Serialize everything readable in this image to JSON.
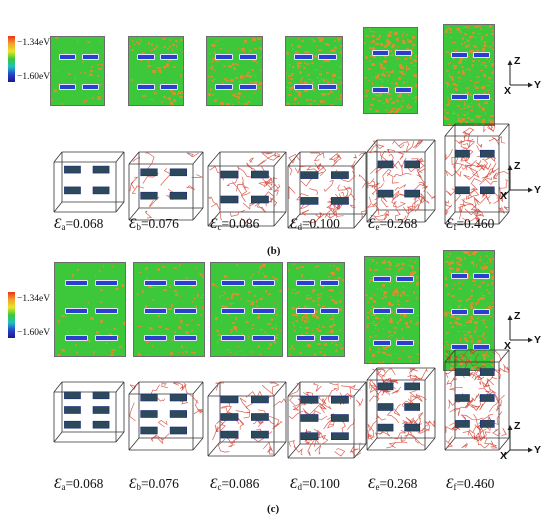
{
  "sections": [
    {
      "id": "b",
      "caption": "(b)",
      "colorbar": {
        "top_label": "−1.34eV",
        "bottom_label": "−1.60eV"
      },
      "strains": [
        {
          "sub": "a",
          "value": "=0.068"
        },
        {
          "sub": "b",
          "value": "=0.076"
        },
        {
          "sub": "c",
          "value": "=0.086"
        },
        {
          "sub": "d",
          "value": "=0.100"
        },
        {
          "sub": "e",
          "value": "=0.268"
        },
        {
          "sub": "f",
          "value": "=0.460"
        }
      ],
      "axes_top": {
        "z": "Z",
        "x": "X",
        "y": "Y"
      },
      "axes_bottom": {
        "z": "Z",
        "x": "X",
        "y": "Y"
      }
    },
    {
      "id": "c",
      "caption": "(c)",
      "colorbar": {
        "top_label": "−1.34eV",
        "bottom_label": "−1.60eV"
      },
      "strains": [
        {
          "sub": "a",
          "value": "=0.068"
        },
        {
          "sub": "b",
          "value": "=0.076"
        },
        {
          "sub": "c",
          "value": "=0.086"
        },
        {
          "sub": "d",
          "value": "=0.100"
        },
        {
          "sub": "e",
          "value": "=0.268"
        },
        {
          "sub": "f",
          "value": "=0.460"
        }
      ],
      "axes_top": {
        "z": "Z",
        "x": "X",
        "y": "Y"
      },
      "axes_bottom": {
        "z": "Z",
        "x": "X",
        "y": "Y"
      }
    }
  ],
  "strain_symbol": "Ɛ",
  "colors": {
    "matrix_green": "#3cc83a",
    "defect_orange": "#f08a2a",
    "particle_blue": "#2a3fd0",
    "dislocation_red": "#d23a2a"
  }
}
